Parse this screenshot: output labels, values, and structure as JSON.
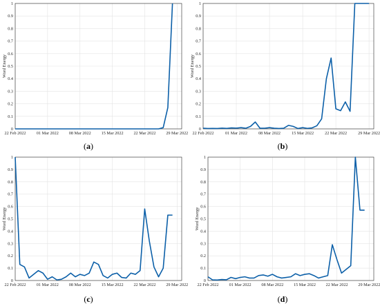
{
  "figure": {
    "panels": [
      {
        "caption_letter": "a"
      },
      {
        "caption_letter": "b"
      },
      {
        "caption_letter": "c"
      },
      {
        "caption_letter": "d"
      }
    ]
  },
  "chart_data": [
    {
      "type": "line",
      "title": "",
      "xlabel": "",
      "ylabel": "Word Energy",
      "x_ticks": [
        "22 Feb 2022",
        "01 Mar 2022",
        "08 Mar 2022",
        "15 Mar 2022",
        "22 Mar 2022",
        "29 Mar 2022"
      ],
      "y_ticks": [
        "0",
        "0.1",
        "0.2",
        "0.3",
        "0.4",
        "0.5",
        "0.6",
        "0.7",
        "0.8",
        "0.9",
        "1"
      ],
      "xlim": [
        "2022-02-22",
        "2022-03-30"
      ],
      "ylim": [
        0,
        1
      ],
      "grid": true,
      "color": "#0b5fa8",
      "x": [
        "2022-02-22",
        "2022-03-24",
        "2022-03-25",
        "2022-03-26",
        "2022-03-27",
        "2022-03-28"
      ],
      "y": [
        0,
        0,
        0,
        0.01,
        0.17,
        1.0
      ]
    },
    {
      "type": "line",
      "title": "",
      "xlabel": "",
      "ylabel": "Word Energy",
      "x_ticks": [
        "22 Feb 2022",
        "01 Mar 2022",
        "08 Mar 2022",
        "15 Mar 2022",
        "22 Mar 2022",
        "29 Mar 2022"
      ],
      "y_ticks": [
        "0",
        "0.1",
        "0.2",
        "0.3",
        "0.4",
        "0.5",
        "0.6",
        "0.7",
        "0.8",
        "0.9",
        "1"
      ],
      "xlim": [
        "2022-02-22",
        "2022-03-30"
      ],
      "ylim": [
        0,
        1
      ],
      "grid": true,
      "color": "#0b5fa8",
      "x": [
        "2022-02-22",
        "2022-02-23",
        "2022-02-24",
        "2022-02-25",
        "2022-02-26",
        "2022-02-27",
        "2022-02-28",
        "2022-03-01",
        "2022-03-02",
        "2022-03-03",
        "2022-03-04",
        "2022-03-05",
        "2022-03-06",
        "2022-03-07",
        "2022-03-08",
        "2022-03-09",
        "2022-03-10",
        "2022-03-11",
        "2022-03-12",
        "2022-03-13",
        "2022-03-14",
        "2022-03-15",
        "2022-03-16",
        "2022-03-17",
        "2022-03-18",
        "2022-03-19",
        "2022-03-20",
        "2022-03-21",
        "2022-03-22",
        "2022-03-23",
        "2022-03-24",
        "2022-03-25",
        "2022-03-26",
        "2022-03-27",
        "2022-03-28",
        "2022-03-29"
      ],
      "y": [
        0.005,
        0.003,
        0.004,
        0.003,
        0.006,
        0.004,
        0.008,
        0.006,
        0.01,
        0.005,
        0.02,
        0.055,
        0.005,
        0.005,
        0.01,
        0.005,
        0.003,
        0.005,
        0.028,
        0.02,
        0.003,
        0.01,
        0.004,
        0.008,
        0.025,
        0.08,
        0.4,
        0.565,
        0.16,
        0.145,
        0.215,
        0.14,
        1.0,
        1.0,
        1.0,
        1.0
      ]
    },
    {
      "type": "line",
      "title": "",
      "xlabel": "",
      "ylabel": "Word Energy",
      "x_ticks": [
        "22 Feb 2022",
        "01 Mar 2022",
        "08 Mar 2022",
        "15 Mar 2022",
        "22 Mar 2022",
        "29 Mar 2022"
      ],
      "y_ticks": [
        "0",
        "0.1",
        "0.2",
        "0.3",
        "0.4",
        "0.5",
        "0.6",
        "0.7",
        "0.8",
        "0.9",
        "1"
      ],
      "xlim": [
        "2022-02-22",
        "2022-03-30"
      ],
      "ylim": [
        0,
        1
      ],
      "grid": true,
      "color": "#0b5fa8",
      "x": [
        "2022-02-22",
        "2022-02-23",
        "2022-02-24",
        "2022-02-25",
        "2022-02-26",
        "2022-02-27",
        "2022-02-28",
        "2022-03-01",
        "2022-03-02",
        "2022-03-03",
        "2022-03-04",
        "2022-03-05",
        "2022-03-06",
        "2022-03-07",
        "2022-03-08",
        "2022-03-09",
        "2022-03-10",
        "2022-03-11",
        "2022-03-12",
        "2022-03-13",
        "2022-03-14",
        "2022-03-15",
        "2022-03-16",
        "2022-03-17",
        "2022-03-18",
        "2022-03-19",
        "2022-03-20",
        "2022-03-21",
        "2022-03-22",
        "2022-03-23",
        "2022-03-24",
        "2022-03-25",
        "2022-03-26",
        "2022-03-27",
        "2022-03-28"
      ],
      "y": [
        1.0,
        0.13,
        0.11,
        0.02,
        0.05,
        0.08,
        0.06,
        0.01,
        0.03,
        0.005,
        0.01,
        0.03,
        0.06,
        0.03,
        0.05,
        0.04,
        0.06,
        0.15,
        0.13,
        0.04,
        0.02,
        0.05,
        0.06,
        0.025,
        0.02,
        0.06,
        0.05,
        0.08,
        0.58,
        0.32,
        0.11,
        0.03,
        0.1,
        0.53,
        0.53
      ]
    },
    {
      "type": "line",
      "title": "",
      "xlabel": "",
      "ylabel": "Word Energy",
      "x_ticks": [
        "22 Feb 2022",
        "01 Mar 2022",
        "08 Mar 2022",
        "15 Mar 2022",
        "22 Mar 2022",
        "29 Mar 2022"
      ],
      "y_ticks": [
        "0",
        "0.1",
        "0.2",
        "0.3",
        "0.4",
        "0.5",
        "0.6",
        "0.7",
        "0.8",
        "0.9",
        "1"
      ],
      "xlim": [
        "2022-02-22",
        "2022-03-30"
      ],
      "ylim": [
        0,
        1
      ],
      "grid": true,
      "color": "#0b5fa8",
      "x": [
        "2022-02-22",
        "2022-02-23",
        "2022-02-24",
        "2022-02-25",
        "2022-02-26",
        "2022-02-27",
        "2022-02-28",
        "2022-03-01",
        "2022-03-02",
        "2022-03-03",
        "2022-03-04",
        "2022-03-05",
        "2022-03-06",
        "2022-03-07",
        "2022-03-08",
        "2022-03-09",
        "2022-03-10",
        "2022-03-11",
        "2022-03-12",
        "2022-03-13",
        "2022-03-14",
        "2022-03-15",
        "2022-03-16",
        "2022-03-17",
        "2022-03-18",
        "2022-03-19",
        "2022-03-20",
        "2022-03-21",
        "2022-03-22",
        "2022-03-23",
        "2022-03-24",
        "2022-03-25",
        "2022-03-26",
        "2022-03-27",
        "2022-03-28"
      ],
      "y": [
        0.03,
        0.005,
        0.004,
        0.008,
        0.006,
        0.025,
        0.015,
        0.025,
        0.03,
        0.02,
        0.02,
        0.04,
        0.045,
        0.035,
        0.05,
        0.03,
        0.02,
        0.025,
        0.03,
        0.055,
        0.04,
        0.05,
        0.055,
        0.04,
        0.02,
        0.03,
        0.04,
        0.29,
        0.17,
        0.06,
        0.09,
        0.12,
        1.0,
        0.57,
        0.57
      ]
    }
  ]
}
